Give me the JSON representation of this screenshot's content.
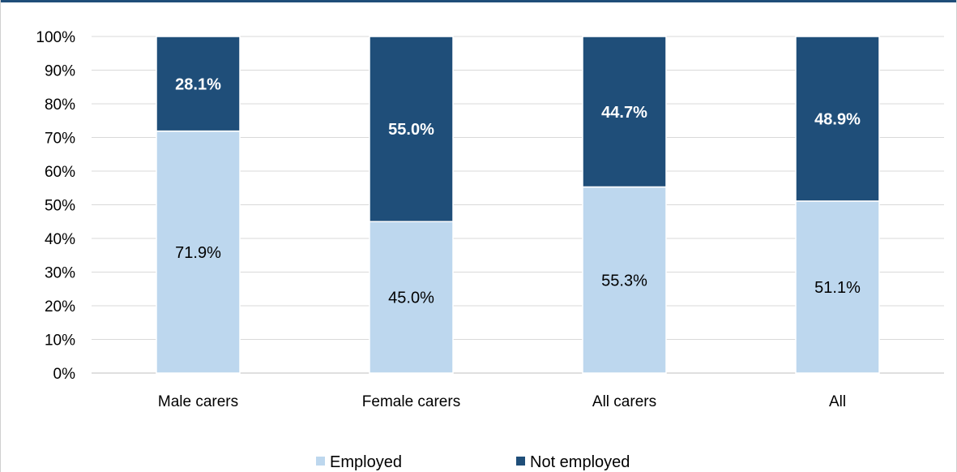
{
  "chart_data": {
    "type": "bar",
    "stacked": true,
    "categories": [
      "Male carers",
      "Female carers",
      "All carers",
      "All"
    ],
    "series": [
      {
        "name": "Employed",
        "values": [
          71.9,
          45.0,
          55.3,
          51.1
        ],
        "labels": [
          "71.9%",
          "45.0%",
          "55.3%",
          "51.1%"
        ],
        "color": "#bdd7ee"
      },
      {
        "name": "Not employed",
        "values": [
          28.1,
          55.0,
          44.7,
          48.9
        ],
        "labels": [
          "28.1%",
          "55.0%",
          "44.7%",
          "48.9%"
        ],
        "color": "#1f4e79"
      }
    ],
    "yticks": [
      "0%",
      "10%",
      "20%",
      "30%",
      "40%",
      "50%",
      "60%",
      "70%",
      "80%",
      "90%",
      "100%"
    ],
    "ylim": [
      0,
      100
    ],
    "grid": true,
    "legend_position": "bottom"
  }
}
